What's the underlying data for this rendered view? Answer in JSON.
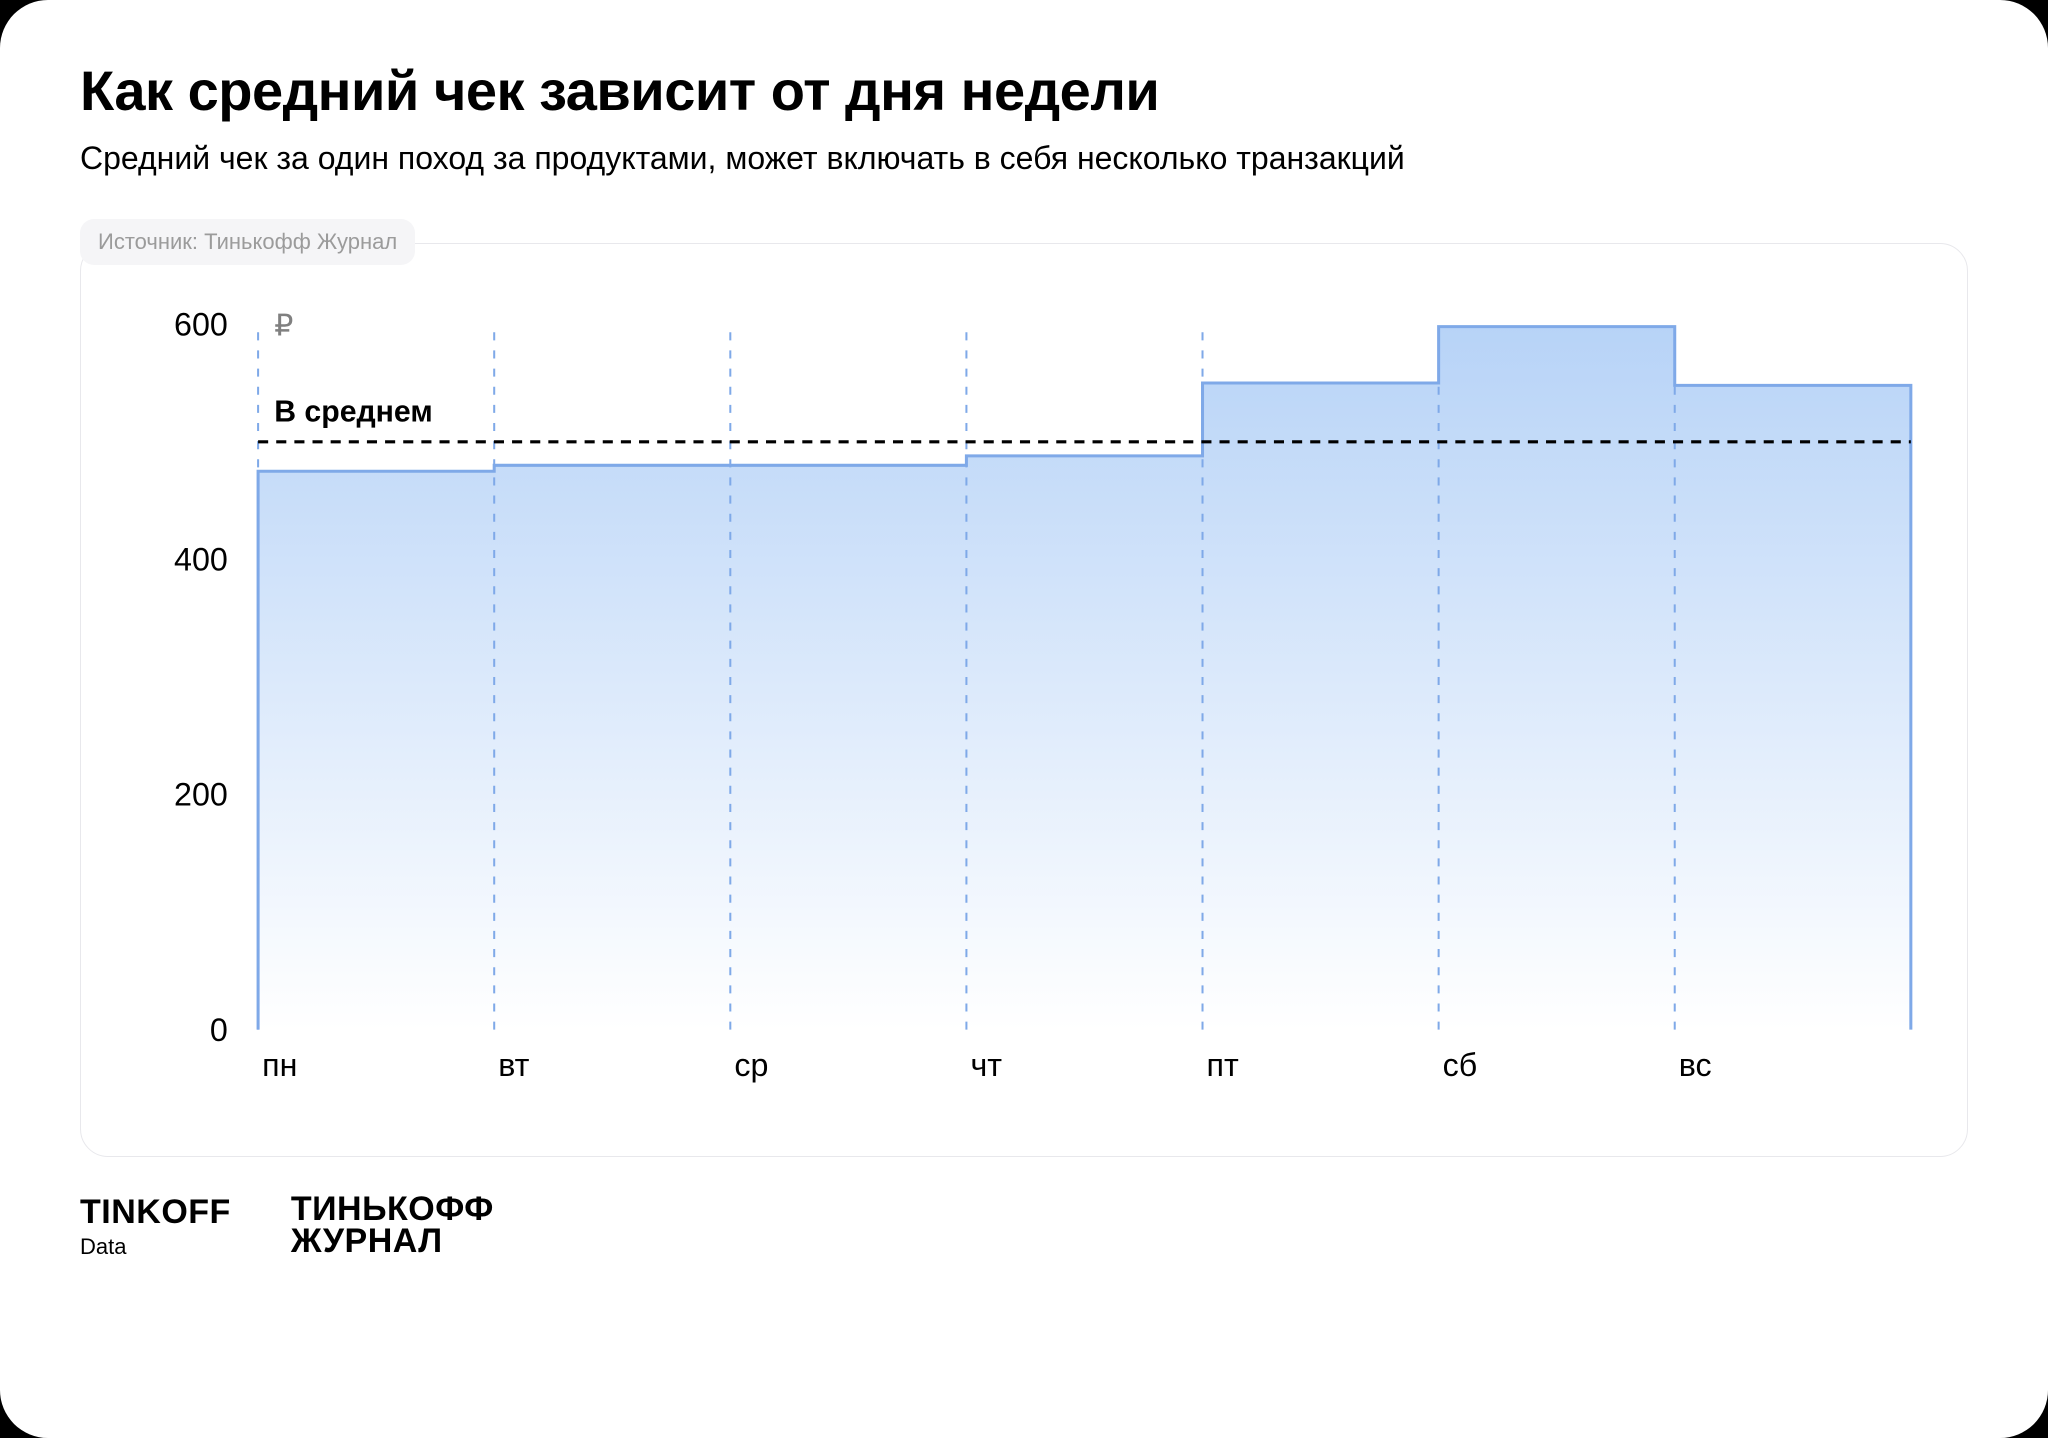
{
  "title": "Как средний чек зависит от дня недели",
  "subtitle": "Средний чек за один поход за продуктами, может включать в себя несколько транзакций",
  "source_label": "Источник: Тинькофф Журнал",
  "chart": {
    "type": "step-area",
    "categories": [
      "пн",
      "вт",
      "ср",
      "чт",
      "пт",
      "сб",
      "вс"
    ],
    "values": [
      475,
      480,
      480,
      488,
      550,
      598,
      548
    ],
    "average_value": 500,
    "average_label": "В среднем",
    "currency_symbol": "₽",
    "ylim": [
      0,
      600
    ],
    "yticks": [
      0,
      200,
      400,
      600
    ],
    "area_gradient_top": "#b7d3f7",
    "area_gradient_bottom": "#ffffff",
    "area_border_color": "#7fa9e8",
    "grid_color": "#7fa9e8",
    "avg_line_color": "#000000",
    "background_color": "#ffffff",
    "panel_border_color": "#e8e8ec",
    "title_fontsize": 56,
    "subtitle_fontsize": 32,
    "source_fontsize": 22,
    "axis_fontsize": 32
  },
  "footer": {
    "logo1_brand": "TINKOFF",
    "logo1_sub": "Data",
    "logo2_line1": "ТИНЬКОФФ",
    "logo2_line2": "ЖУРНАЛ",
    "logo1_brand_fontsize": 34,
    "logo1_sub_fontsize": 22,
    "logo2_fontsize": 34
  }
}
